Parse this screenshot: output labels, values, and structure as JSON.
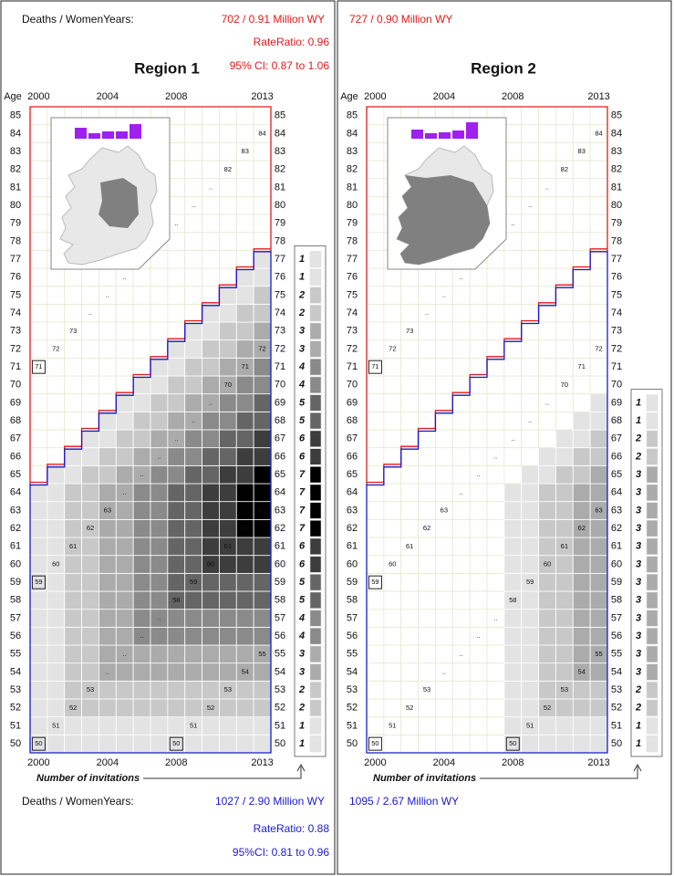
{
  "chart_data": [
    {
      "type": "heatmap",
      "title": "Region 1",
      "y_label": "Age",
      "legend_title": "Number of invitations",
      "stats_top": {
        "color": "#e41a1c",
        "label": "Deaths / WomenYears:",
        "lines": [
          "702 / 0.91 Million WY",
          "RateRatio:  0.96",
          "95% CI: 0.87 to 1.06"
        ]
      },
      "stats_bottom": {
        "color": "#1a1acc",
        "label": "Deaths / WomenYears:",
        "lines": [
          "1027 / 2.90 Million WY",
          "RateRatio: 0.88",
          "95%CI: 0.81 to 0.96"
        ]
      },
      "inset_labels": [
        "–",
        "+"
      ],
      "upper_color": "#e41a1c",
      "lower_color": "#1a1acc",
      "shades": [
        "#ffffff",
        "#e3e3e3",
        "#c8c8c8",
        "#ababab",
        "#8a8a8a",
        "#656565",
        "#3d3d3d",
        "#000000"
      ],
      "x": [
        2000,
        null,
        null,
        null,
        2004,
        null,
        null,
        null,
        2008,
        null,
        null,
        null,
        null,
        2013
      ],
      "y": [
        50,
        51,
        52,
        53,
        54,
        55,
        56,
        57,
        58,
        59,
        60,
        61,
        62,
        63,
        64,
        65,
        66,
        67,
        68,
        69,
        70,
        71,
        72,
        73,
        74,
        75,
        76,
        77,
        78,
        79,
        80,
        81,
        82,
        83,
        84,
        85
      ],
      "values": [
        [
          1,
          1,
          1,
          1,
          1,
          1,
          1,
          1,
          1,
          1,
          1,
          1,
          1,
          1
        ],
        [
          1,
          1,
          1,
          1,
          1,
          1,
          1,
          1,
          1,
          1,
          1,
          1,
          1,
          1
        ],
        [
          1,
          1,
          2,
          2,
          2,
          2,
          2,
          2,
          2,
          2,
          2,
          2,
          2,
          2
        ],
        [
          1,
          1,
          2,
          2,
          2,
          2,
          2,
          2,
          2,
          2,
          2,
          2,
          2,
          2
        ],
        [
          1,
          1,
          2,
          2,
          3,
          3,
          3,
          3,
          3,
          3,
          3,
          3,
          3,
          3
        ],
        [
          1,
          1,
          2,
          2,
          3,
          3,
          3,
          3,
          3,
          3,
          3,
          3,
          3,
          3
        ],
        [
          1,
          1,
          2,
          2,
          3,
          3,
          4,
          4,
          4,
          4,
          4,
          4,
          4,
          4
        ],
        [
          1,
          1,
          2,
          2,
          3,
          3,
          4,
          4,
          4,
          4,
          4,
          4,
          4,
          4
        ],
        [
          1,
          1,
          2,
          2,
          3,
          3,
          4,
          4,
          5,
          5,
          5,
          5,
          5,
          5
        ],
        [
          1,
          1,
          2,
          2,
          3,
          3,
          4,
          4,
          5,
          5,
          5,
          5,
          5,
          5
        ],
        [
          1,
          1,
          2,
          2,
          3,
          3,
          4,
          4,
          5,
          5,
          6,
          6,
          6,
          6
        ],
        [
          1,
          1,
          2,
          2,
          3,
          3,
          4,
          4,
          5,
          5,
          6,
          6,
          6,
          6
        ],
        [
          1,
          1,
          2,
          2,
          3,
          3,
          4,
          4,
          5,
          5,
          6,
          6,
          7,
          7
        ],
        [
          1,
          1,
          2,
          2,
          3,
          3,
          4,
          4,
          5,
          5,
          6,
          6,
          7,
          7
        ],
        [
          1,
          1,
          2,
          2,
          3,
          3,
          4,
          4,
          5,
          5,
          6,
          6,
          7,
          7
        ],
        [
          0,
          1,
          1,
          2,
          2,
          3,
          3,
          4,
          4,
          5,
          5,
          6,
          6,
          7
        ],
        [
          0,
          0,
          1,
          1,
          2,
          2,
          3,
          3,
          4,
          4,
          5,
          5,
          6,
          6
        ],
        [
          0,
          0,
          0,
          1,
          1,
          2,
          2,
          3,
          3,
          4,
          4,
          5,
          5,
          6
        ],
        [
          0,
          0,
          0,
          0,
          1,
          1,
          2,
          2,
          3,
          3,
          4,
          4,
          5,
          5
        ],
        [
          0,
          0,
          0,
          0,
          0,
          1,
          1,
          2,
          2,
          3,
          3,
          4,
          4,
          5
        ],
        [
          0,
          0,
          0,
          0,
          0,
          0,
          1,
          1,
          2,
          2,
          3,
          3,
          4,
          4
        ],
        [
          0,
          0,
          0,
          0,
          0,
          0,
          0,
          1,
          1,
          2,
          2,
          3,
          3,
          4
        ],
        [
          0,
          0,
          0,
          0,
          0,
          0,
          0,
          0,
          1,
          1,
          2,
          2,
          3,
          3
        ],
        [
          0,
          0,
          0,
          0,
          0,
          0,
          0,
          0,
          0,
          1,
          1,
          2,
          2,
          3
        ],
        [
          0,
          0,
          0,
          0,
          0,
          0,
          0,
          0,
          0,
          0,
          1,
          1,
          2,
          2
        ],
        [
          0,
          0,
          0,
          0,
          0,
          0,
          0,
          0,
          0,
          0,
          0,
          1,
          1,
          2
        ],
        [
          0,
          0,
          0,
          0,
          0,
          0,
          0,
          0,
          0,
          0,
          0,
          0,
          1,
          1
        ],
        [
          0,
          0,
          0,
          0,
          0,
          0,
          0,
          0,
          0,
          0,
          0,
          0,
          0,
          1
        ],
        [
          0,
          0,
          0,
          0,
          0,
          0,
          0,
          0,
          0,
          0,
          0,
          0,
          0,
          0
        ],
        [
          0,
          0,
          0,
          0,
          0,
          0,
          0,
          0,
          0,
          0,
          0,
          0,
          0,
          0
        ],
        [
          0,
          0,
          0,
          0,
          0,
          0,
          0,
          0,
          0,
          0,
          0,
          0,
          0,
          0
        ],
        [
          0,
          0,
          0,
          0,
          0,
          0,
          0,
          0,
          0,
          0,
          0,
          0,
          0,
          0
        ],
        [
          0,
          0,
          0,
          0,
          0,
          0,
          0,
          0,
          0,
          0,
          0,
          0,
          0,
          0
        ],
        [
          0,
          0,
          0,
          0,
          0,
          0,
          0,
          0,
          0,
          0,
          0,
          0,
          0,
          0
        ],
        [
          0,
          0,
          0,
          0,
          0,
          0,
          0,
          0,
          0,
          0,
          0,
          0,
          0,
          0
        ],
        [
          0,
          0,
          0,
          0,
          0,
          0,
          0,
          0,
          0,
          0,
          0,
          0,
          0,
          0
        ]
      ],
      "diagonals": [
        [
          50,
          51,
          52,
          53,
          "..",
          "..",
          "..",
          "..",
          58,
          59,
          60,
          61,
          62,
          63
        ],
        [
          59,
          60,
          61,
          62,
          63,
          "..",
          "..",
          "..",
          "..",
          "..",
          "..",
          70,
          71,
          72
        ],
        [
          null,
          null,
          null,
          null,
          null,
          null,
          null,
          null,
          50,
          51,
          52,
          53,
          54,
          55
        ],
        [
          71,
          72,
          73,
          "..",
          "..",
          "..",
          "..",
          "..",
          "..",
          "..",
          "..",
          82,
          83,
          84
        ]
      ]
    },
    {
      "type": "heatmap",
      "title": "Region 2",
      "y_label": "Age",
      "legend_title": "Number of invitations",
      "stats_top": {
        "color": "#e41a1c",
        "lines": [
          "727 / 0.90 Million WY"
        ]
      },
      "stats_bottom": {
        "color": "#1a1acc",
        "lines": [
          "1095 / 2.67 Million WY"
        ]
      },
      "inset_labels": [
        "–",
        "+"
      ],
      "upper_color": "#e41a1c",
      "lower_color": "#1a1acc",
      "shades": [
        "#ffffff",
        "#e3e3e3",
        "#c8c8c8",
        "#ababab",
        "#8a8a8a",
        "#656565",
        "#3d3d3d",
        "#000000"
      ],
      "x": [
        2000,
        null,
        null,
        null,
        2004,
        null,
        null,
        null,
        2008,
        null,
        null,
        null,
        null,
        2013
      ],
      "y": [
        50,
        51,
        52,
        53,
        54,
        55,
        56,
        57,
        58,
        59,
        60,
        61,
        62,
        63,
        64,
        65,
        66,
        67,
        68,
        69,
        70,
        71,
        72,
        73,
        74,
        75,
        76,
        77,
        78,
        79,
        80,
        81,
        82,
        83,
        84,
        85
      ],
      "values": [
        [
          0,
          0,
          0,
          0,
          0,
          0,
          0,
          0,
          1,
          1,
          1,
          1,
          1,
          1
        ],
        [
          0,
          0,
          0,
          0,
          0,
          0,
          0,
          0,
          1,
          1,
          1,
          1,
          1,
          1
        ],
        [
          0,
          0,
          0,
          0,
          0,
          0,
          0,
          0,
          1,
          1,
          2,
          2,
          2,
          2
        ],
        [
          0,
          0,
          0,
          0,
          0,
          0,
          0,
          0,
          1,
          1,
          2,
          2,
          2,
          2
        ],
        [
          0,
          0,
          0,
          0,
          0,
          0,
          0,
          0,
          1,
          1,
          2,
          2,
          3,
          3
        ],
        [
          0,
          0,
          0,
          0,
          0,
          0,
          0,
          0,
          1,
          1,
          2,
          2,
          3,
          3
        ],
        [
          0,
          0,
          0,
          0,
          0,
          0,
          0,
          0,
          1,
          1,
          2,
          2,
          3,
          3
        ],
        [
          0,
          0,
          0,
          0,
          0,
          0,
          0,
          0,
          1,
          1,
          2,
          2,
          3,
          3
        ],
        [
          0,
          0,
          0,
          0,
          0,
          0,
          0,
          0,
          1,
          1,
          2,
          2,
          3,
          3
        ],
        [
          0,
          0,
          0,
          0,
          0,
          0,
          0,
          0,
          1,
          1,
          2,
          2,
          3,
          3
        ],
        [
          0,
          0,
          0,
          0,
          0,
          0,
          0,
          0,
          1,
          1,
          2,
          2,
          3,
          3
        ],
        [
          0,
          0,
          0,
          0,
          0,
          0,
          0,
          0,
          1,
          1,
          2,
          2,
          3,
          3
        ],
        [
          0,
          0,
          0,
          0,
          0,
          0,
          0,
          0,
          1,
          1,
          2,
          2,
          3,
          3
        ],
        [
          0,
          0,
          0,
          0,
          0,
          0,
          0,
          0,
          1,
          1,
          2,
          2,
          3,
          3
        ],
        [
          0,
          0,
          0,
          0,
          0,
          0,
          0,
          0,
          1,
          1,
          2,
          2,
          3,
          3
        ],
        [
          0,
          0,
          0,
          0,
          0,
          0,
          0,
          0,
          0,
          1,
          1,
          2,
          2,
          3
        ],
        [
          0,
          0,
          0,
          0,
          0,
          0,
          0,
          0,
          0,
          0,
          1,
          1,
          2,
          2
        ],
        [
          0,
          0,
          0,
          0,
          0,
          0,
          0,
          0,
          0,
          0,
          0,
          1,
          1,
          2
        ],
        [
          0,
          0,
          0,
          0,
          0,
          0,
          0,
          0,
          0,
          0,
          0,
          0,
          1,
          1
        ],
        [
          0,
          0,
          0,
          0,
          0,
          0,
          0,
          0,
          0,
          0,
          0,
          0,
          0,
          1
        ],
        [
          0,
          0,
          0,
          0,
          0,
          0,
          0,
          0,
          0,
          0,
          0,
          0,
          0,
          0
        ],
        [
          0,
          0,
          0,
          0,
          0,
          0,
          0,
          0,
          0,
          0,
          0,
          0,
          0,
          0
        ],
        [
          0,
          0,
          0,
          0,
          0,
          0,
          0,
          0,
          0,
          0,
          0,
          0,
          0,
          0
        ],
        [
          0,
          0,
          0,
          0,
          0,
          0,
          0,
          0,
          0,
          0,
          0,
          0,
          0,
          0
        ],
        [
          0,
          0,
          0,
          0,
          0,
          0,
          0,
          0,
          0,
          0,
          0,
          0,
          0,
          0
        ],
        [
          0,
          0,
          0,
          0,
          0,
          0,
          0,
          0,
          0,
          0,
          0,
          0,
          0,
          0
        ],
        [
          0,
          0,
          0,
          0,
          0,
          0,
          0,
          0,
          0,
          0,
          0,
          0,
          0,
          0
        ],
        [
          0,
          0,
          0,
          0,
          0,
          0,
          0,
          0,
          0,
          0,
          0,
          0,
          0,
          0
        ],
        [
          0,
          0,
          0,
          0,
          0,
          0,
          0,
          0,
          0,
          0,
          0,
          0,
          0,
          0
        ],
        [
          0,
          0,
          0,
          0,
          0,
          0,
          0,
          0,
          0,
          0,
          0,
          0,
          0,
          0
        ],
        [
          0,
          0,
          0,
          0,
          0,
          0,
          0,
          0,
          0,
          0,
          0,
          0,
          0,
          0
        ],
        [
          0,
          0,
          0,
          0,
          0,
          0,
          0,
          0,
          0,
          0,
          0,
          0,
          0,
          0
        ],
        [
          0,
          0,
          0,
          0,
          0,
          0,
          0,
          0,
          0,
          0,
          0,
          0,
          0,
          0
        ],
        [
          0,
          0,
          0,
          0,
          0,
          0,
          0,
          0,
          0,
          0,
          0,
          0,
          0,
          0
        ],
        [
          0,
          0,
          0,
          0,
          0,
          0,
          0,
          0,
          0,
          0,
          0,
          0,
          0,
          0
        ],
        [
          0,
          0,
          0,
          0,
          0,
          0,
          0,
          0,
          0,
          0,
          0,
          0,
          0,
          0
        ]
      ],
      "diagonals": [
        [
          50,
          51,
          52,
          53,
          "..",
          "..",
          "..",
          "..",
          58,
          59,
          60,
          61,
          62,
          63
        ],
        [
          59,
          60,
          61,
          62,
          63,
          "..",
          "..",
          "..",
          "..",
          "..",
          "..",
          70,
          71,
          72
        ],
        [
          null,
          null,
          null,
          null,
          null,
          null,
          null,
          null,
          50,
          51,
          52,
          53,
          54,
          55
        ],
        [
          71,
          72,
          73,
          "..",
          "..",
          "..",
          "..",
          "..",
          "..",
          "..",
          "..",
          82,
          83,
          84
        ]
      ]
    }
  ]
}
